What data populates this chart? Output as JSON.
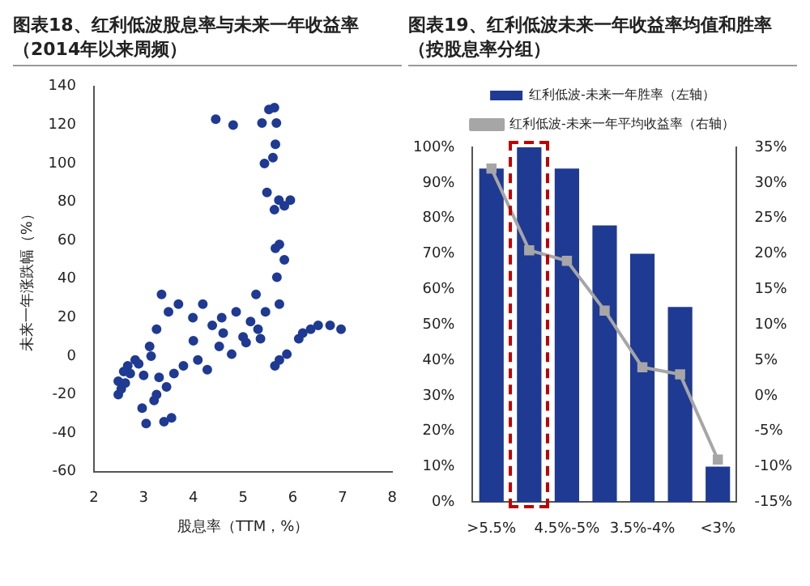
{
  "chart_data": [
    {
      "type": "scatter",
      "title": "图表18、红利低波股息率与未来一年收益率（2014年以来周频）",
      "xlabel": "股息率（TTM，%）",
      "ylabel": "未来一年涨跌幅（%）",
      "x": [
        4.45,
        4.8,
        5.38,
        5.52,
        5.63,
        5.67,
        5.65,
        5.6,
        5.43,
        5.48,
        5.72,
        5.63,
        5.83,
        5.95,
        5.73,
        5.65,
        2.49,
        2.49,
        2.63,
        2.68,
        2.73,
        2.83,
        2.97,
        3.05,
        3.21,
        3.26,
        3.41,
        3.56,
        3.46,
        3.31,
        3.61,
        3.8,
        4.09,
        4.28,
        4.52,
        4.77,
        5.06,
        5.35,
        5.64,
        5.73,
        5.88,
        6.12,
        6.36,
        6.51,
        6.75,
        6.97,
        3.12,
        3.26,
        3.5,
        3.7,
        3.99,
        4.19,
        4.38,
        4.57,
        4.86,
        5.15,
        5.45,
        5.73,
        5.83,
        5.68,
        5.26,
        3.36,
        2.55,
        2.6,
        2.9,
        3.0,
        3.15,
        4.0,
        4.6,
        5.0,
        5.3,
        6.2
      ],
      "values": [
        123,
        120,
        121,
        128,
        129,
        121,
        110,
        103,
        100,
        85,
        81,
        76,
        78,
        81,
        58,
        56,
        -13,
        -20,
        -14,
        -5,
        -9,
        -2,
        -27,
        -35,
        -23,
        -20,
        -34,
        -32,
        -16,
        -11,
        -9,
        -5,
        -2,
        -7,
        5,
        1,
        7,
        9,
        -5,
        -2,
        1,
        9,
        14,
        16,
        16,
        14,
        5,
        14,
        23,
        27,
        20,
        27,
        16,
        20,
        23,
        18,
        23,
        27,
        50,
        41,
        32,
        32,
        -17,
        -8,
        -4,
        -10,
        0,
        8,
        12,
        10,
        14,
        12
      ],
      "color": "#1f3a93",
      "marker": "circle",
      "xlim": [
        2,
        8
      ],
      "xticks": [
        2,
        3,
        4,
        5,
        6,
        7,
        8
      ],
      "ylim": [
        -60,
        140
      ],
      "yticks": [
        -60,
        -40,
        -20,
        0,
        20,
        40,
        60,
        80,
        100,
        120,
        140
      ],
      "grid": false,
      "legend": false
    },
    {
      "type": "bar",
      "title": "图表19、红利低波未来一年收益率均值和胜率（按股息率分组）",
      "categories": [
        ">5.5%",
        null,
        "4.5%-5%",
        null,
        "3.5%-4%",
        null,
        "<3%"
      ],
      "series": [
        {
          "name": "红利低波-未来一年胜率（左轴）",
          "color": "#1f3a93",
          "values": [
            94,
            100,
            94,
            78,
            70,
            55,
            10
          ]
        },
        {
          "name": "红利低波-未来一年平均收益率（右轴）",
          "type": "line",
          "axis": "y2",
          "color": "#a6a6a6",
          "marker": "square",
          "values": [
            32,
            20.5,
            19,
            12,
            4,
            3,
            -9
          ]
        }
      ],
      "ylim": [
        0,
        100
      ],
      "yticks": [
        {
          "value": 0,
          "label": "0%"
        },
        {
          "value": 10,
          "label": "10%"
        },
        {
          "value": 20,
          "label": "20%"
        },
        {
          "value": 30,
          "label": "30%"
        },
        {
          "value": 40,
          "label": "40%"
        },
        {
          "value": 50,
          "label": "50%"
        },
        {
          "value": 60,
          "label": "60%"
        },
        {
          "value": 70,
          "label": "70%"
        },
        {
          "value": 80,
          "label": "80%"
        },
        {
          "value": 90,
          "label": "90%"
        },
        {
          "value": 100,
          "label": "100%"
        }
      ],
      "y2lim": [
        -15,
        35
      ],
      "y2ticks": [
        {
          "value": -15,
          "label": "-15%"
        },
        {
          "value": -10,
          "label": "-10%"
        },
        {
          "value": -5,
          "label": "-5%"
        },
        {
          "value": 0,
          "label": "0%"
        },
        {
          "value": 5,
          "label": "5%"
        },
        {
          "value": 10,
          "label": "10%"
        },
        {
          "value": 15,
          "label": "15%"
        },
        {
          "value": 20,
          "label": "20%"
        },
        {
          "value": 25,
          "label": "25%"
        },
        {
          "value": 30,
          "label": "30%"
        },
        {
          "value": 35,
          "label": "35%"
        }
      ],
      "legend": "top",
      "grid": false
    }
  ]
}
